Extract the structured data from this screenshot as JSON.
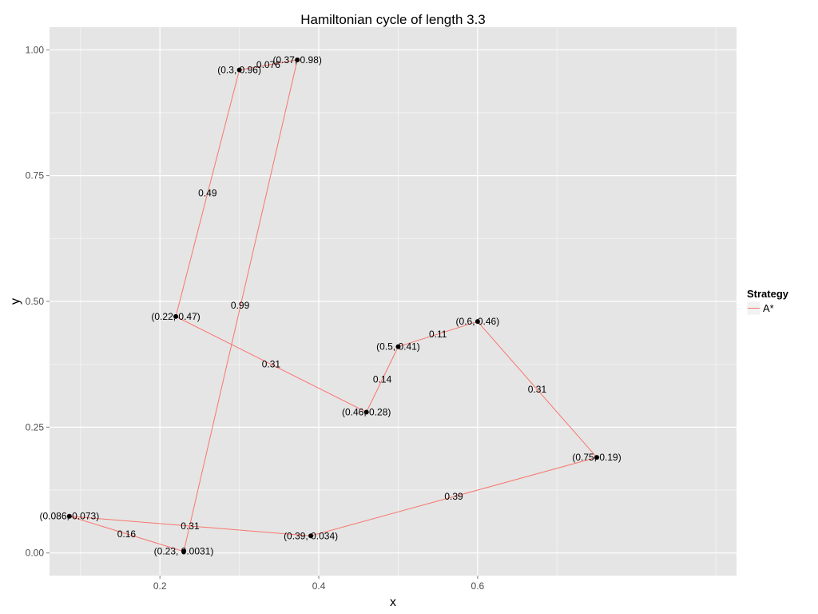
{
  "chart_data": {
    "type": "line",
    "title": "Hamiltonian cycle of length 3.3",
    "xlabel": "x",
    "ylabel": "y",
    "xlim": [
      0.061,
      0.926
    ],
    "ylim": [
      -0.045,
      1.045
    ],
    "x_ticks": [
      {
        "value": 0.2,
        "label": "0.2"
      },
      {
        "value": 0.4,
        "label": "0.4"
      },
      {
        "value": 0.6,
        "label": "0.6"
      }
    ],
    "y_ticks": [
      {
        "value": 0.0,
        "label": "0.00"
      },
      {
        "value": 0.25,
        "label": "0.25"
      },
      {
        "value": 0.5,
        "label": "0.50"
      },
      {
        "value": 0.75,
        "label": "0.75"
      },
      {
        "value": 1.0,
        "label": "1.00"
      }
    ],
    "grid": true,
    "legend": {
      "title": "Strategy",
      "entries": [
        {
          "name": "A*",
          "color": "#F8766D"
        }
      ],
      "placement": "right"
    },
    "series": [
      {
        "name": "A*",
        "color": "#F8766D",
        "x": [
          0.086,
          0.23,
          0.373,
          0.3,
          0.22,
          0.46,
          0.5,
          0.6,
          0.75,
          0.39,
          0.086
        ],
        "y": [
          0.073,
          0.0031,
          0.98,
          0.96,
          0.47,
          0.28,
          0.41,
          0.46,
          0.19,
          0.034,
          0.073
        ]
      }
    ],
    "points": [
      {
        "x": 0.086,
        "y": 0.073,
        "label": "(0.086, 0.073)"
      },
      {
        "x": 0.23,
        "y": 0.0031,
        "label": "(0.23, 0.0031)"
      },
      {
        "x": 0.373,
        "y": 0.98,
        "label": "(0.37, 0.98)"
      },
      {
        "x": 0.3,
        "y": 0.96,
        "label": "(0.3, 0.96)"
      },
      {
        "x": 0.22,
        "y": 0.47,
        "label": "(0.22, 0.47)"
      },
      {
        "x": 0.46,
        "y": 0.28,
        "label": "(0.46, 0.28)"
      },
      {
        "x": 0.5,
        "y": 0.41,
        "label": "(0.5, 0.41)"
      },
      {
        "x": 0.6,
        "y": 0.46,
        "label": "(0.6, 0.46)"
      },
      {
        "x": 0.75,
        "y": 0.19,
        "label": "(0.75, 0.19)"
      },
      {
        "x": 0.39,
        "y": 0.034,
        "label": "(0.39, 0.034)"
      }
    ],
    "edge_labels": [
      {
        "x": 0.158,
        "y": 0.038,
        "label": "0.16"
      },
      {
        "x": 0.301,
        "y": 0.492,
        "label": "0.99"
      },
      {
        "x": 0.3365,
        "y": 0.97,
        "label": "0.076"
      },
      {
        "x": 0.26,
        "y": 0.715,
        "label": "0.49"
      },
      {
        "x": 0.34,
        "y": 0.375,
        "label": "0.31"
      },
      {
        "x": 0.48,
        "y": 0.345,
        "label": "0.14"
      },
      {
        "x": 0.55,
        "y": 0.435,
        "label": "0.11"
      },
      {
        "x": 0.675,
        "y": 0.325,
        "label": "0.31"
      },
      {
        "x": 0.57,
        "y": 0.112,
        "label": "0.39"
      },
      {
        "x": 0.238,
        "y": 0.0535,
        "label": "0.31"
      }
    ]
  }
}
